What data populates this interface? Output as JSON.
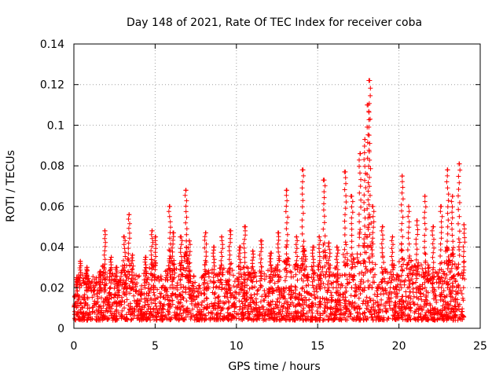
{
  "chart_data": {
    "type": "scatter",
    "title": "Day 148 of 2021, Rate Of TEC Index for receiver coba",
    "xlabel": "GPS time / hours",
    "ylabel": "ROTI / TECUs",
    "xlim": [
      0,
      25
    ],
    "ylim": [
      0,
      0.14
    ],
    "xticks": [
      0,
      5,
      10,
      15,
      20,
      25
    ],
    "xtick_labels": [
      "0",
      "5",
      "10",
      "15",
      "20",
      "25"
    ],
    "yticks": [
      0,
      0.02,
      0.04,
      0.06,
      0.08,
      0.1,
      0.12,
      0.14
    ],
    "ytick_labels": [
      "0",
      "0.02",
      "0.04",
      "0.06",
      "0.08",
      "0.1",
      "0.12",
      "0.14"
    ],
    "grid": true,
    "marker": "+",
    "marker_color": "#ff0000",
    "series": [
      {
        "name": "ROTI",
        "description_range": "approx. 0 to 24 hours, values mostly 0.005-0.03 TECU/min",
        "peaks": [
          {
            "x": 0.2,
            "y": 0.025
          },
          {
            "x": 0.4,
            "y": 0.033
          },
          {
            "x": 0.8,
            "y": 0.03
          },
          {
            "x": 1.6,
            "y": 0.028
          },
          {
            "x": 1.9,
            "y": 0.048
          },
          {
            "x": 2.3,
            "y": 0.035
          },
          {
            "x": 2.6,
            "y": 0.03
          },
          {
            "x": 3.1,
            "y": 0.045
          },
          {
            "x": 3.4,
            "y": 0.056
          },
          {
            "x": 3.6,
            "y": 0.036
          },
          {
            "x": 4.4,
            "y": 0.035
          },
          {
            "x": 4.8,
            "y": 0.048
          },
          {
            "x": 5.0,
            "y": 0.045
          },
          {
            "x": 5.9,
            "y": 0.06
          },
          {
            "x": 6.1,
            "y": 0.047
          },
          {
            "x": 6.6,
            "y": 0.045
          },
          {
            "x": 6.9,
            "y": 0.068
          },
          {
            "x": 7.1,
            "y": 0.043
          },
          {
            "x": 8.1,
            "y": 0.047
          },
          {
            "x": 8.6,
            "y": 0.04
          },
          {
            "x": 9.1,
            "y": 0.045
          },
          {
            "x": 9.6,
            "y": 0.048
          },
          {
            "x": 10.2,
            "y": 0.04
          },
          {
            "x": 10.5,
            "y": 0.05
          },
          {
            "x": 11.0,
            "y": 0.038
          },
          {
            "x": 11.5,
            "y": 0.043
          },
          {
            "x": 12.1,
            "y": 0.037
          },
          {
            "x": 12.6,
            "y": 0.047
          },
          {
            "x": 13.1,
            "y": 0.068
          },
          {
            "x": 13.7,
            "y": 0.045
          },
          {
            "x": 14.1,
            "y": 0.078
          },
          {
            "x": 14.7,
            "y": 0.04
          },
          {
            "x": 15.1,
            "y": 0.045
          },
          {
            "x": 15.4,
            "y": 0.073
          },
          {
            "x": 15.7,
            "y": 0.042
          },
          {
            "x": 16.2,
            "y": 0.04
          },
          {
            "x": 16.7,
            "y": 0.077
          },
          {
            "x": 17.1,
            "y": 0.065
          },
          {
            "x": 17.6,
            "y": 0.086
          },
          {
            "x": 17.9,
            "y": 0.093
          },
          {
            "x": 18.1,
            "y": 0.11
          },
          {
            "x": 18.2,
            "y": 0.122
          },
          {
            "x": 18.4,
            "y": 0.06
          },
          {
            "x": 19.0,
            "y": 0.05
          },
          {
            "x": 19.6,
            "y": 0.045
          },
          {
            "x": 20.2,
            "y": 0.075
          },
          {
            "x": 20.6,
            "y": 0.06
          },
          {
            "x": 21.1,
            "y": 0.053
          },
          {
            "x": 21.6,
            "y": 0.065
          },
          {
            "x": 22.1,
            "y": 0.05
          },
          {
            "x": 22.6,
            "y": 0.06
          },
          {
            "x": 23.0,
            "y": 0.078
          },
          {
            "x": 23.3,
            "y": 0.065
          },
          {
            "x": 23.7,
            "y": 0.081
          },
          {
            "x": 24.0,
            "y": 0.051
          }
        ]
      }
    ]
  }
}
